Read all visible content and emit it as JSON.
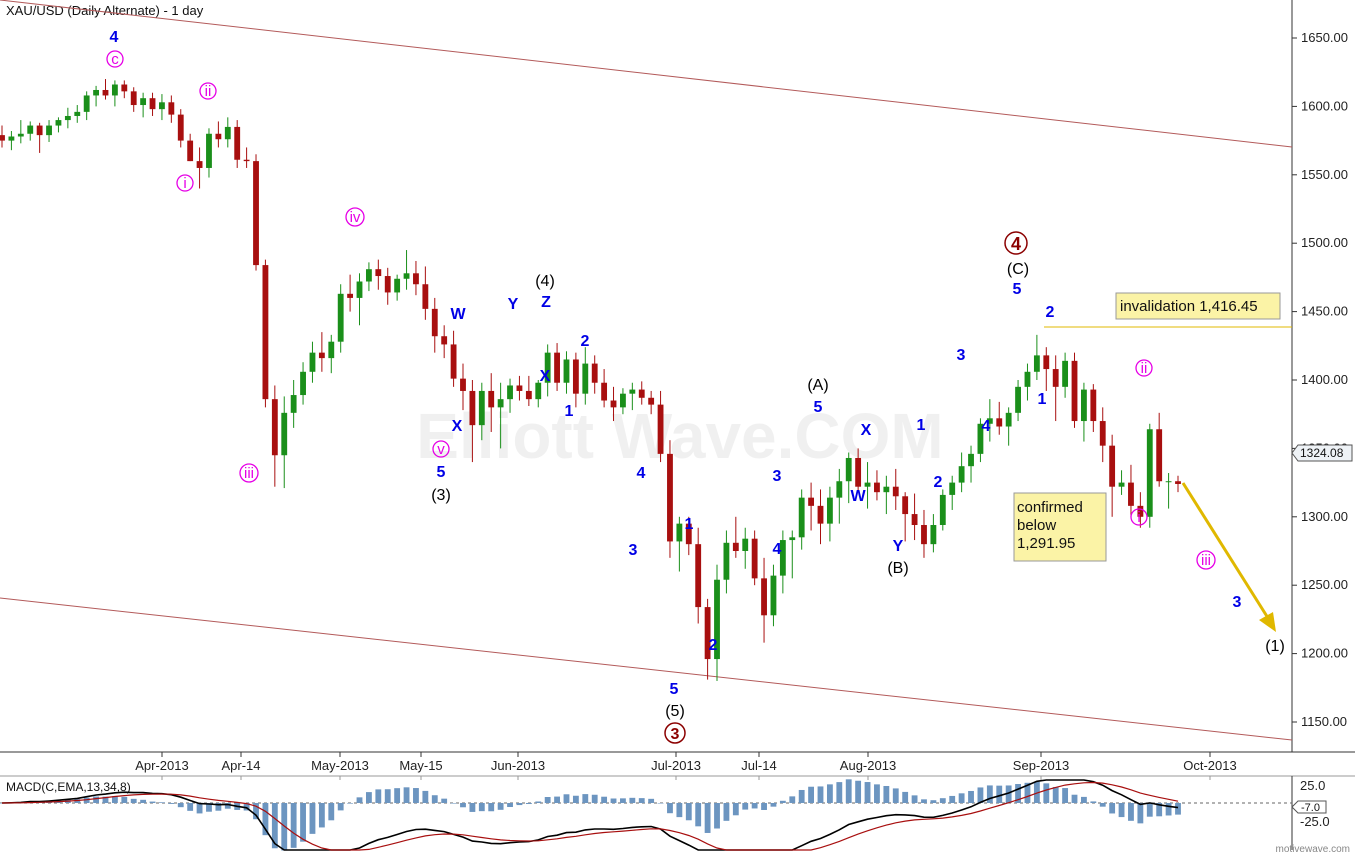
{
  "header": {
    "title": "XAU/USD (Daily Alternate) - 1 day"
  },
  "price_tag": "1324.08",
  "invalidation_label": "invalidation 1,416.45",
  "confirmed_label": [
    "confirmed",
    "below",
    "1,291.95"
  ],
  "watermark": "Elliott Wave.COM",
  "footer": "motivewave.com",
  "macd": {
    "label": "MACD(C,EMA,13,34,8)",
    "ticks": [
      "25.0",
      "-25.0"
    ],
    "current": "-7.0"
  },
  "colors": {
    "up": "#1a8f1a",
    "down": "#a80f0f",
    "wave_blue": "#0000e6",
    "wave_magenta": "#e600e6",
    "wave_darkred": "#8b0000",
    "channel": "#b35a5a",
    "arrow": "#e0b800",
    "hist": "#6c95c0"
  },
  "chart_data": {
    "type": "candlestick",
    "y_axis": {
      "ylim": [
        1130,
        1680
      ],
      "ticks": [
        1150,
        1200,
        1250,
        1300,
        1350,
        1400,
        1450,
        1500,
        1550,
        1600,
        1650
      ]
    },
    "x_labels": [
      "Apr-2013",
      "Apr-14",
      "May-2013",
      "May-15",
      "Jun-2013",
      "Jul-2013",
      "Jul-14",
      "Aug-2013",
      "Sep-2013",
      "Oct-2013"
    ],
    "candles": [
      [
        1579,
        1586,
        1570,
        1575
      ],
      [
        1575,
        1582,
        1568,
        1578
      ],
      [
        1578,
        1590,
        1573,
        1580
      ],
      [
        1580,
        1589,
        1575,
        1586
      ],
      [
        1586,
        1588,
        1566,
        1579
      ],
      [
        1579,
        1590,
        1574,
        1586
      ],
      [
        1586,
        1592,
        1581,
        1590
      ],
      [
        1590,
        1599,
        1584,
        1593
      ],
      [
        1593,
        1601,
        1588,
        1596
      ],
      [
        1596,
        1611,
        1590,
        1608
      ],
      [
        1608,
        1615,
        1600,
        1612
      ],
      [
        1612,
        1620,
        1605,
        1608
      ],
      [
        1608,
        1619,
        1600,
        1616
      ],
      [
        1616,
        1619,
        1606,
        1611
      ],
      [
        1611,
        1614,
        1596,
        1601
      ],
      [
        1601,
        1610,
        1592,
        1606
      ],
      [
        1606,
        1610,
        1593,
        1598
      ],
      [
        1598,
        1609,
        1590,
        1603
      ],
      [
        1603,
        1608,
        1588,
        1594
      ],
      [
        1594,
        1598,
        1570,
        1575
      ],
      [
        1575,
        1580,
        1560,
        1560
      ],
      [
        1560,
        1570,
        1540,
        1555
      ],
      [
        1555,
        1584,
        1548,
        1580
      ],
      [
        1580,
        1589,
        1570,
        1576
      ],
      [
        1576,
        1592,
        1570,
        1585
      ],
      [
        1585,
        1590,
        1555,
        1561
      ],
      [
        1561,
        1570,
        1555,
        1560
      ],
      [
        1560,
        1565,
        1480,
        1484
      ],
      [
        1484,
        1488,
        1380,
        1386
      ],
      [
        1386,
        1396,
        1322,
        1345
      ],
      [
        1345,
        1388,
        1321,
        1376
      ],
      [
        1376,
        1400,
        1365,
        1389
      ],
      [
        1389,
        1413,
        1382,
        1406
      ],
      [
        1406,
        1428,
        1398,
        1420
      ],
      [
        1420,
        1435,
        1406,
        1416
      ],
      [
        1416,
        1433,
        1405,
        1428
      ],
      [
        1428,
        1470,
        1420,
        1463
      ],
      [
        1463,
        1477,
        1450,
        1460
      ],
      [
        1460,
        1478,
        1440,
        1472
      ],
      [
        1472,
        1486,
        1465,
        1481
      ],
      [
        1481,
        1488,
        1466,
        1476
      ],
      [
        1476,
        1482,
        1455,
        1464
      ],
      [
        1464,
        1477,
        1458,
        1474
      ],
      [
        1474,
        1495,
        1466,
        1478
      ],
      [
        1478,
        1487,
        1462,
        1470
      ],
      [
        1470,
        1483,
        1444,
        1452
      ],
      [
        1452,
        1460,
        1420,
        1432
      ],
      [
        1432,
        1440,
        1416,
        1426
      ],
      [
        1426,
        1436,
        1395,
        1401
      ],
      [
        1401,
        1412,
        1378,
        1392
      ],
      [
        1392,
        1400,
        1340,
        1367
      ],
      [
        1367,
        1398,
        1356,
        1392
      ],
      [
        1392,
        1405,
        1362,
        1380
      ],
      [
        1380,
        1398,
        1350,
        1386
      ],
      [
        1386,
        1401,
        1376,
        1396
      ],
      [
        1396,
        1403,
        1385,
        1392
      ],
      [
        1392,
        1403,
        1381,
        1386
      ],
      [
        1386,
        1400,
        1380,
        1398
      ],
      [
        1398,
        1426,
        1388,
        1420
      ],
      [
        1420,
        1427,
        1392,
        1398
      ],
      [
        1398,
        1421,
        1390,
        1415
      ],
      [
        1415,
        1420,
        1380,
        1390
      ],
      [
        1390,
        1424,
        1382,
        1412
      ],
      [
        1412,
        1418,
        1390,
        1398
      ],
      [
        1398,
        1408,
        1380,
        1385
      ],
      [
        1385,
        1395,
        1370,
        1380
      ],
      [
        1380,
        1394,
        1375,
        1390
      ],
      [
        1390,
        1398,
        1378,
        1393
      ],
      [
        1393,
        1399,
        1382,
        1387
      ],
      [
        1387,
        1392,
        1375,
        1382
      ],
      [
        1382,
        1392,
        1340,
        1346
      ],
      [
        1346,
        1356,
        1270,
        1282
      ],
      [
        1282,
        1300,
        1260,
        1295
      ],
      [
        1295,
        1300,
        1272,
        1280
      ],
      [
        1280,
        1292,
        1222,
        1234
      ],
      [
        1234,
        1240,
        1181,
        1196
      ],
      [
        1196,
        1265,
        1180,
        1254
      ],
      [
        1254,
        1290,
        1244,
        1281
      ],
      [
        1281,
        1300,
        1270,
        1275
      ],
      [
        1275,
        1292,
        1262,
        1284
      ],
      [
        1284,
        1290,
        1250,
        1255
      ],
      [
        1255,
        1270,
        1208,
        1228
      ],
      [
        1228,
        1265,
        1220,
        1257
      ],
      [
        1257,
        1290,
        1244,
        1283
      ],
      [
        1283,
        1290,
        1255,
        1285
      ],
      [
        1285,
        1320,
        1276,
        1314
      ],
      [
        1314,
        1325,
        1290,
        1308
      ],
      [
        1308,
        1320,
        1280,
        1295
      ],
      [
        1295,
        1322,
        1282,
        1314
      ],
      [
        1314,
        1335,
        1295,
        1326
      ],
      [
        1326,
        1347,
        1310,
        1343
      ],
      [
        1343,
        1350,
        1318,
        1322
      ],
      [
        1322,
        1340,
        1306,
        1325
      ],
      [
        1325,
        1334,
        1312,
        1318
      ],
      [
        1318,
        1330,
        1302,
        1322
      ],
      [
        1322,
        1335,
        1305,
        1315
      ],
      [
        1315,
        1318,
        1282,
        1302
      ],
      [
        1302,
        1317,
        1283,
        1294
      ],
      [
        1294,
        1305,
        1270,
        1280
      ],
      [
        1280,
        1302,
        1274,
        1294
      ],
      [
        1294,
        1320,
        1290,
        1316
      ],
      [
        1316,
        1330,
        1305,
        1325
      ],
      [
        1325,
        1347,
        1318,
        1337
      ],
      [
        1337,
        1352,
        1325,
        1346
      ],
      [
        1346,
        1372,
        1340,
        1368
      ],
      [
        1368,
        1386,
        1355,
        1372
      ],
      [
        1372,
        1384,
        1360,
        1366
      ],
      [
        1366,
        1380,
        1352,
        1376
      ],
      [
        1376,
        1400,
        1370,
        1395
      ],
      [
        1395,
        1412,
        1385,
        1406
      ],
      [
        1406,
        1433,
        1400,
        1418
      ],
      [
        1418,
        1424,
        1392,
        1408
      ],
      [
        1408,
        1418,
        1370,
        1395
      ],
      [
        1395,
        1420,
        1387,
        1414
      ],
      [
        1414,
        1420,
        1365,
        1370
      ],
      [
        1370,
        1398,
        1355,
        1393
      ],
      [
        1393,
        1397,
        1362,
        1370
      ],
      [
        1370,
        1380,
        1340,
        1352
      ],
      [
        1352,
        1360,
        1300,
        1322
      ],
      [
        1322,
        1334,
        1316,
        1325
      ],
      [
        1325,
        1338,
        1300,
        1308
      ],
      [
        1308,
        1318,
        1292,
        1300
      ],
      [
        1300,
        1368,
        1292,
        1364
      ],
      [
        1364,
        1376,
        1322,
        1326
      ],
      [
        1326,
        1332,
        1306,
        1326
      ],
      [
        1326,
        1330,
        1318,
        1324
      ]
    ],
    "wave_labels": [
      "4",
      "c",
      "ii",
      "i",
      "iii",
      "iv",
      "v",
      "5",
      "(3)",
      "W",
      "X",
      "Y",
      "Z",
      "(4)",
      "X",
      "2",
      "1",
      "3",
      "4",
      "5",
      "(5)",
      "3",
      "1",
      "2",
      "3",
      "4",
      "5",
      "(A)",
      "X",
      "W",
      "Y",
      "(B)",
      "1",
      "2",
      "3",
      "4",
      "5",
      "(C)",
      "4",
      "2",
      "1",
      "ii",
      "i",
      "iii",
      "3",
      "(1)"
    ]
  }
}
